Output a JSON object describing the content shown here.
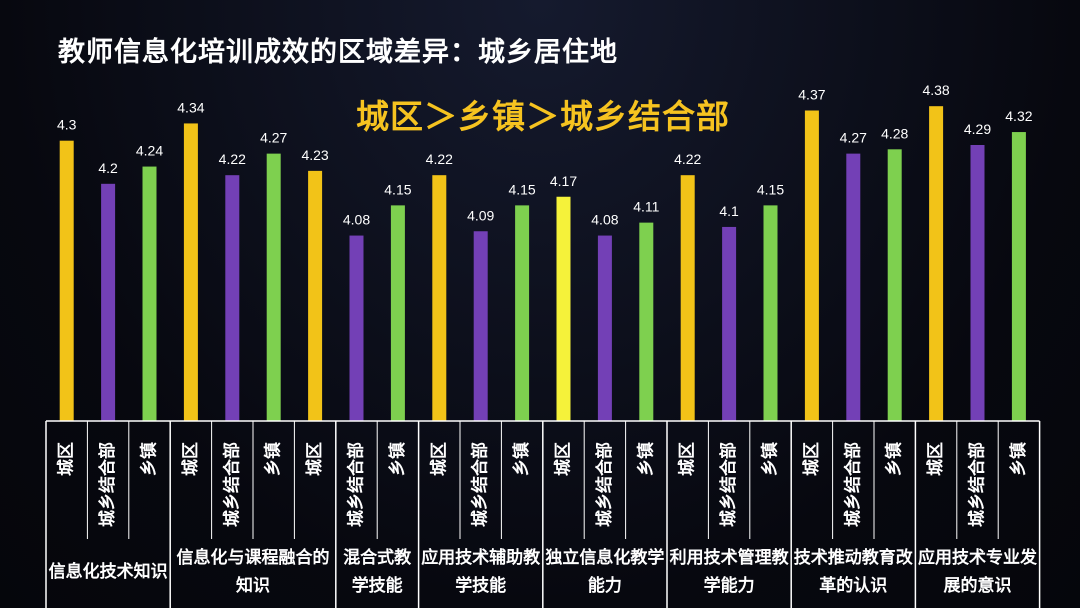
{
  "title": "教师信息化培训成效的区域差异：城乡居住地",
  "subtitle": "城区＞乡镇＞城乡结合部",
  "colors": {
    "城区": "#f2c318",
    "城乡结合部": "#7340b6",
    "乡镇": "#7ed04f",
    "城区_highlight": "#f5f23a"
  },
  "chart_data": {
    "type": "bar",
    "title": "教师信息化培训成效的区域差异：城乡居住地",
    "ylim": [
      3.65,
      4.45
    ],
    "groups": [
      {
        "label": "信息化技术知识",
        "bars": [
          {
            "category": "城区",
            "value": 4.3,
            "value_label": "4.3"
          },
          {
            "category": "城乡结合部",
            "value": 4.2,
            "value_label": "4.2"
          },
          {
            "category": "乡镇",
            "value": 4.24,
            "value_label": "4.24"
          }
        ]
      },
      {
        "label": "信息化与课程融合的知识",
        "bars": [
          {
            "category": "城区",
            "value": 4.34,
            "value_label": "4.34"
          },
          {
            "category": "城乡结合部",
            "value": 4.22,
            "value_label": "4.22"
          },
          {
            "category": "乡镇",
            "value": 4.27,
            "value_label": "4.27"
          },
          {
            "category": "城区",
            "value": 4.23,
            "value_label": "4.23"
          }
        ]
      },
      {
        "label": "混合式教学技能",
        "bars": [
          {
            "category": "城乡结合部",
            "value": 4.08,
            "value_label": "4.08"
          },
          {
            "category": "乡镇",
            "value": 4.15,
            "value_label": "4.15"
          }
        ]
      },
      {
        "label": "应用技术辅助教学技能",
        "bars": [
          {
            "category": "城区",
            "value": 4.22,
            "value_label": "4.22"
          },
          {
            "category": "城乡结合部",
            "value": 4.09,
            "value_label": "4.09"
          },
          {
            "category": "乡镇",
            "value": 4.15,
            "value_label": "4.15"
          }
        ]
      },
      {
        "label": "独立信息化教学能力",
        "bars": [
          {
            "category": "城区",
            "value": 4.17,
            "value_label": "4.17",
            "highlight": true
          },
          {
            "category": "城乡结合部",
            "value": 4.08,
            "value_label": "4.08"
          },
          {
            "category": "乡镇",
            "value": 4.11,
            "value_label": "4.11"
          }
        ]
      },
      {
        "label": "利用技术管理教学能力",
        "bars": [
          {
            "category": "城区",
            "value": 4.22,
            "value_label": "4.22"
          },
          {
            "category": "城乡结合部",
            "value": 4.1,
            "value_label": "4.1"
          },
          {
            "category": "乡镇",
            "value": 4.15,
            "value_label": "4.15"
          }
        ]
      },
      {
        "label": "技术推动教育改革的认识",
        "bars": [
          {
            "category": "城区",
            "value": 4.37,
            "value_label": "4.37"
          },
          {
            "category": "城乡结合部",
            "value": 4.27,
            "value_label": "4.27"
          },
          {
            "category": "乡镇",
            "value": 4.28,
            "value_label": "4.28"
          }
        ]
      },
      {
        "label": "应用技术专业发展的意识",
        "bars": [
          {
            "category": "城区",
            "value": 4.38,
            "value_label": "4.38"
          },
          {
            "category": "城乡结合部",
            "value": 4.29,
            "value_label": "4.29"
          },
          {
            "category": "乡镇",
            "value": 4.32,
            "value_label": "4.32"
          }
        ]
      }
    ]
  }
}
